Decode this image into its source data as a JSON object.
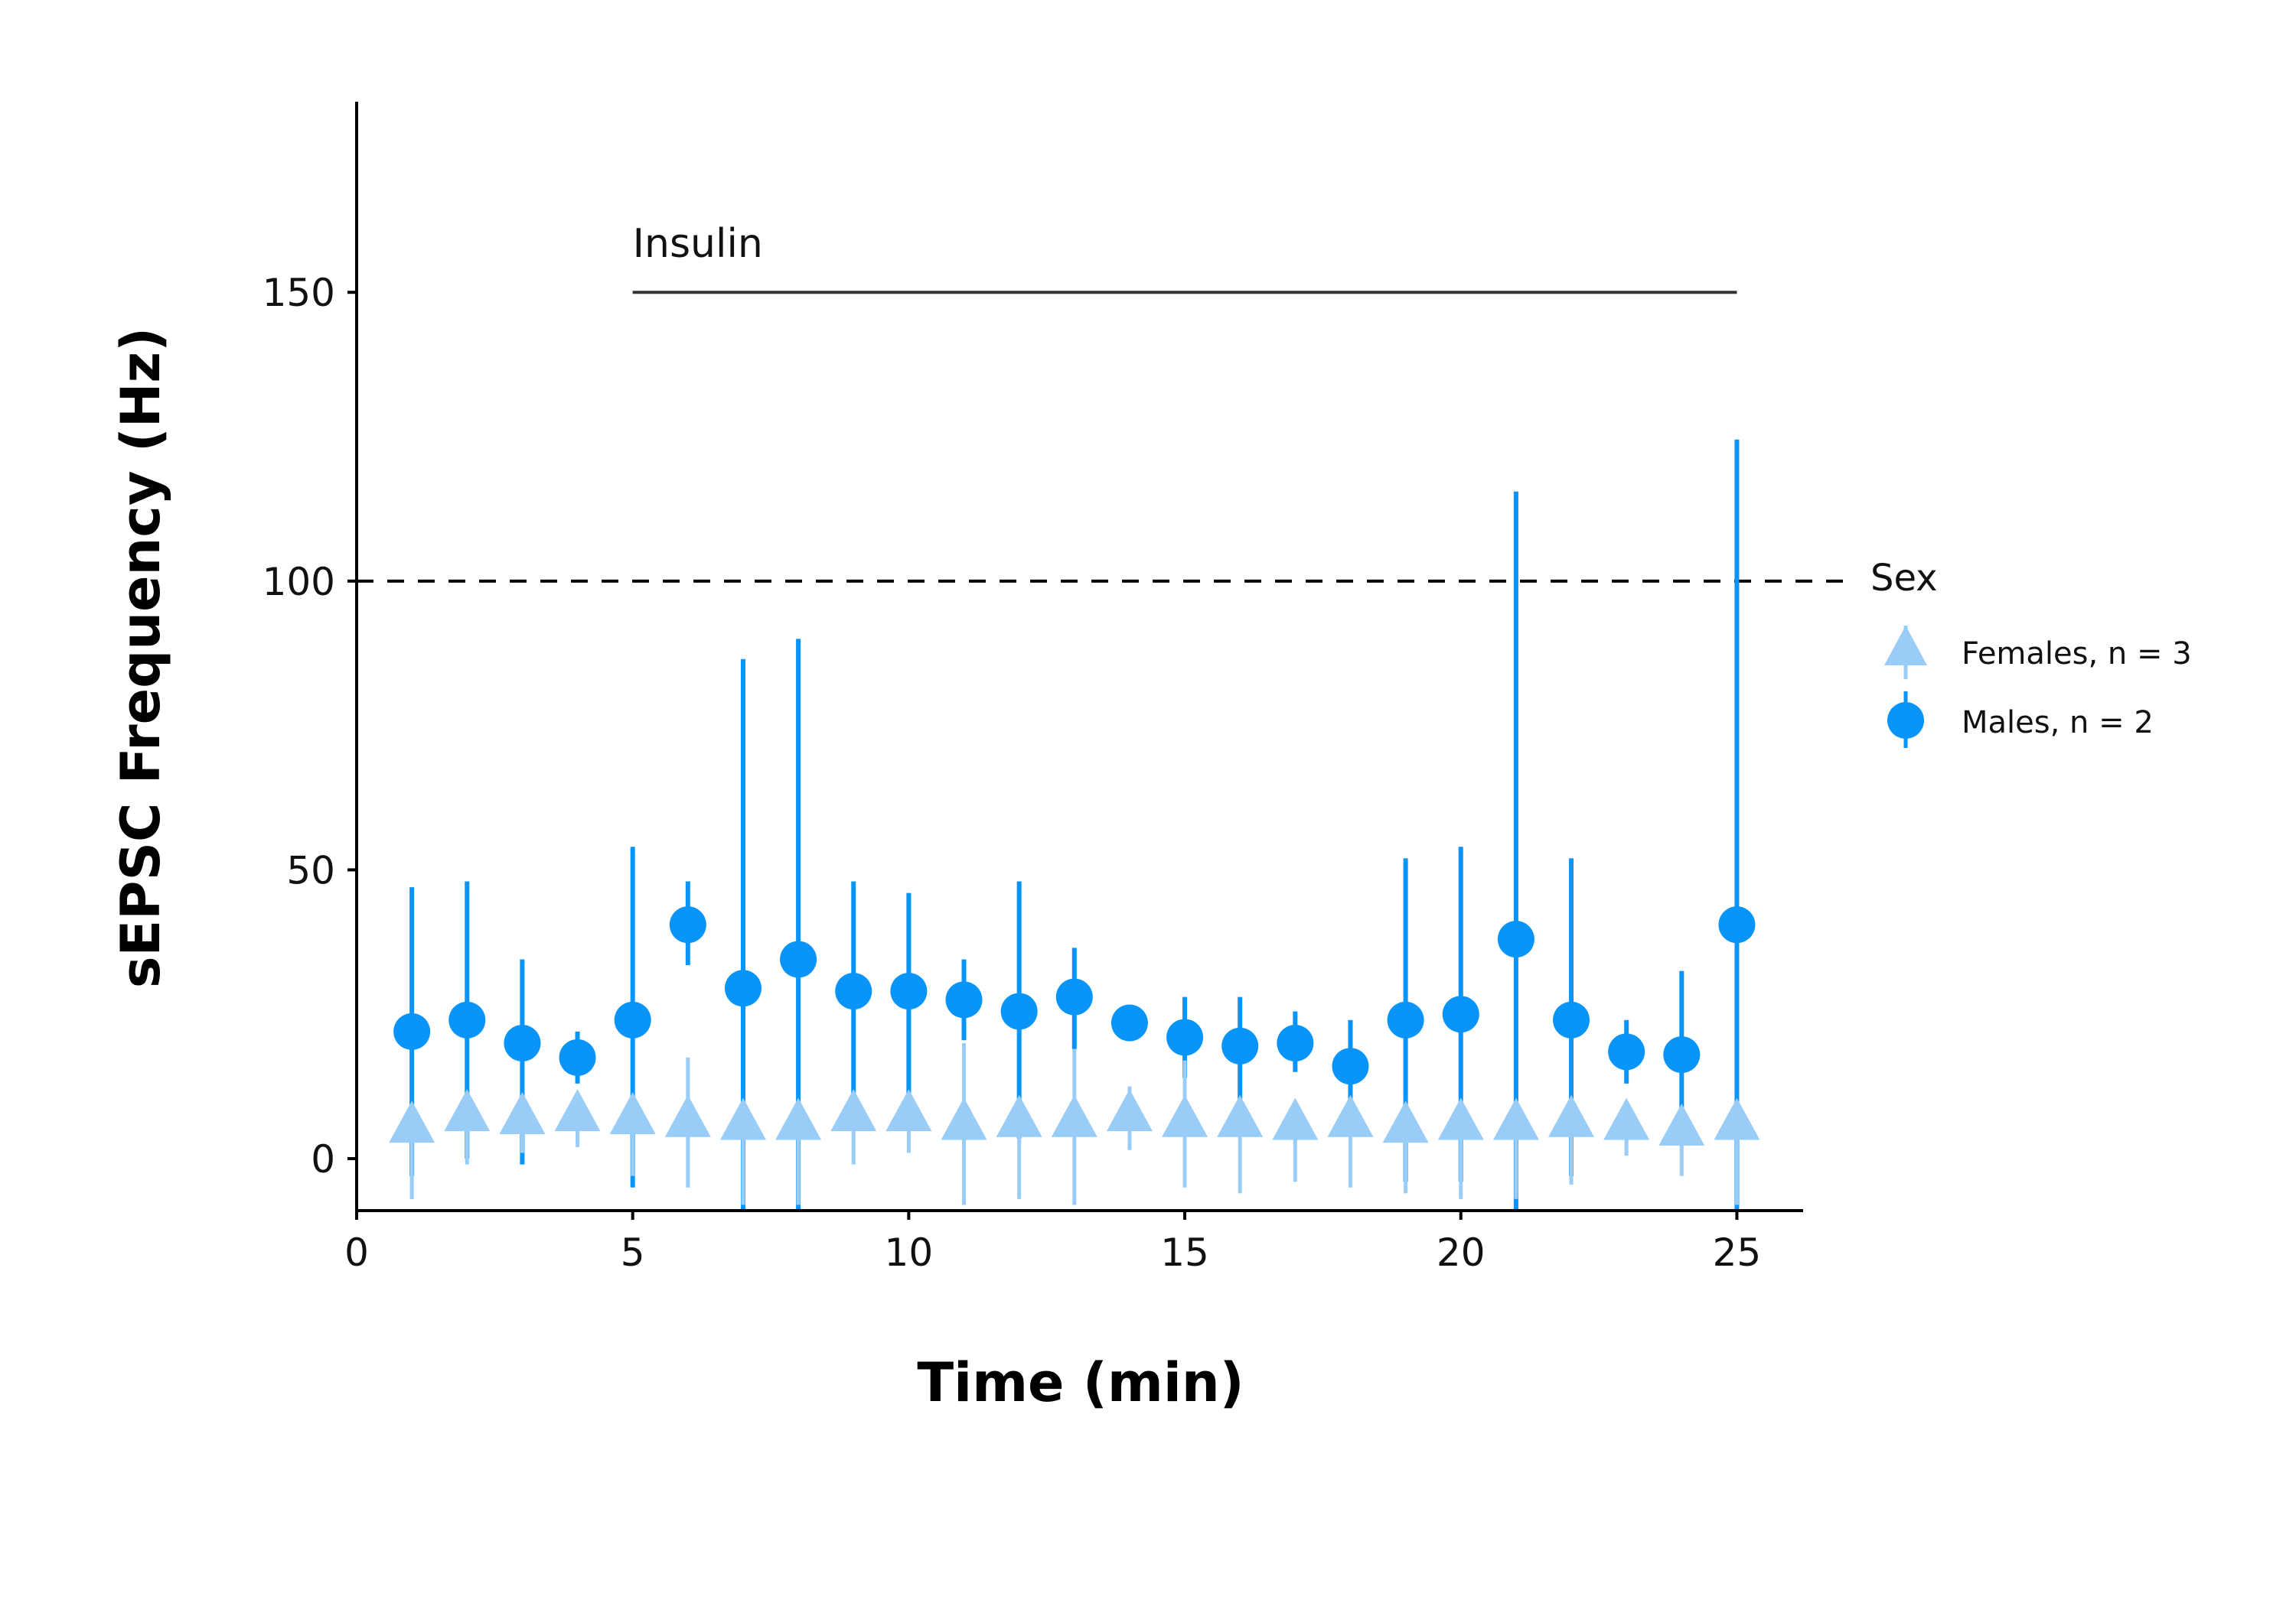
{
  "chart_data": {
    "type": "scatter",
    "xlabel": "Time (min)",
    "ylabel": "sEPSC Frequency (Hz)",
    "xlim": [
      0,
      26.2
    ],
    "ylim": [
      -9,
      183
    ],
    "x_ticks": [
      0,
      5,
      10,
      15,
      20,
      25
    ],
    "y_ticks": [
      0,
      50,
      100,
      150
    ],
    "grid": false,
    "reference_line": {
      "y": 100,
      "style": "dashed"
    },
    "annotation": {
      "label": "Insulin",
      "x_start": 5,
      "x_end": 25,
      "y": 150
    },
    "legend": {
      "title": "Sex",
      "position": "right"
    },
    "series": [
      {
        "name": "Females, n = 3",
        "marker": "triangle",
        "color": "#99CCF7",
        "x": [
          1,
          2,
          3,
          4,
          5,
          6,
          7,
          8,
          9,
          10,
          11,
          12,
          13,
          14,
          15,
          16,
          17,
          18,
          19,
          20,
          21,
          22,
          23,
          24,
          25
        ],
        "y": [
          5,
          7,
          6.5,
          7,
          6.5,
          6,
          5.5,
          5.5,
          7,
          7,
          5.5,
          6,
          6,
          7,
          6,
          6,
          5.5,
          6,
          5,
          5.5,
          5.5,
          6,
          5.5,
          4.5,
          5.5
        ],
        "lower": [
          -7,
          -1,
          1,
          2,
          -3,
          -5,
          -8,
          -8,
          -1,
          1,
          -8,
          -7,
          -8,
          1.5,
          -5,
          -6,
          -4,
          -5,
          -6,
          -7,
          -7,
          -4.5,
          0.5,
          -3,
          -8
        ],
        "upper": [
          9,
          10,
          9.5,
          10.5,
          10,
          17.5,
          8,
          8,
          10,
          10,
          20,
          10,
          19,
          12.5,
          17,
          10,
          10,
          10,
          8.5,
          10,
          8.5,
          9.5,
          9.5,
          8,
          9.5
        ]
      },
      {
        "name": "Males, n = 2",
        "marker": "circle",
        "color": "#0994F9",
        "x": [
          1,
          2,
          3,
          4,
          5,
          6,
          7,
          8,
          9,
          10,
          11,
          12,
          13,
          14,
          15,
          16,
          17,
          18,
          19,
          20,
          21,
          22,
          23,
          24,
          25
        ],
        "y": [
          22,
          24,
          20,
          17.5,
          24,
          40.5,
          29.5,
          34.5,
          29,
          29,
          27.5,
          25.5,
          28,
          23.5,
          21,
          19.5,
          20,
          16,
          24,
          25,
          38,
          24,
          18.5,
          18,
          40.5
        ],
        "lower": [
          -3,
          0,
          -1,
          13,
          -5,
          33.5,
          -9,
          -9,
          10,
          11,
          20.5,
          3.5,
          19,
          20.5,
          14,
          10,
          15,
          8,
          -4,
          -4,
          -9,
          -3,
          13,
          3,
          -9
        ],
        "upper": [
          47,
          48,
          34.5,
          22,
          54,
          48,
          86.5,
          90,
          48,
          46,
          34.5,
          48,
          36.5,
          26.5,
          28,
          28,
          25.5,
          24,
          52,
          54,
          115.5,
          52,
          24,
          32.5,
          124.5
        ]
      }
    ]
  }
}
